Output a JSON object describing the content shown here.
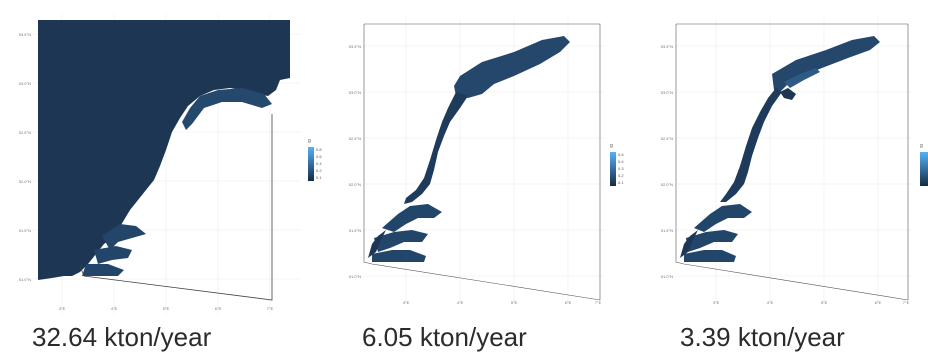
{
  "maps": [
    {
      "caption": "32.64 kton/year",
      "legend_title": "g",
      "legend_labels": [
        "0.8",
        "0.6",
        "0.4",
        "0.2",
        "0.1"
      ],
      "lat_labels": [
        "53.5°N",
        "53.0°N",
        "52.5°N",
        "52.0°N",
        "51.5°N",
        "51.0°N"
      ],
      "lon_labels": [
        "3°E",
        "4°E",
        "5°E",
        "6°E",
        "7°E"
      ]
    },
    {
      "caption": "6.05 kton/year",
      "legend_title": "g",
      "legend_labels": [
        "0.6",
        "0.4",
        "0.3",
        "0.2",
        "0.1"
      ],
      "lat_labels": [
        "53.5°N",
        "53.0°N",
        "52.5°N",
        "52.0°N",
        "51.5°N",
        "51.0°N"
      ],
      "lon_labels": [
        "3°E",
        "4°E",
        "5°E",
        "6°E",
        "7°E"
      ]
    },
    {
      "caption": "3.39 kton/year",
      "legend_title": "g",
      "legend_labels": [],
      "lat_labels": [
        "53.5°N",
        "53.0°N",
        "52.5°N",
        "52.0°N",
        "51.5°N",
        "51.0°N"
      ],
      "lon_labels": [
        "3°E",
        "4°E",
        "5°E",
        "6°E",
        "7°E"
      ]
    }
  ],
  "colors": {
    "sea_dark": "#1b3552",
    "sea_mid": "#2b5680",
    "outline": "#444444",
    "grid": "#e6e6e6"
  }
}
